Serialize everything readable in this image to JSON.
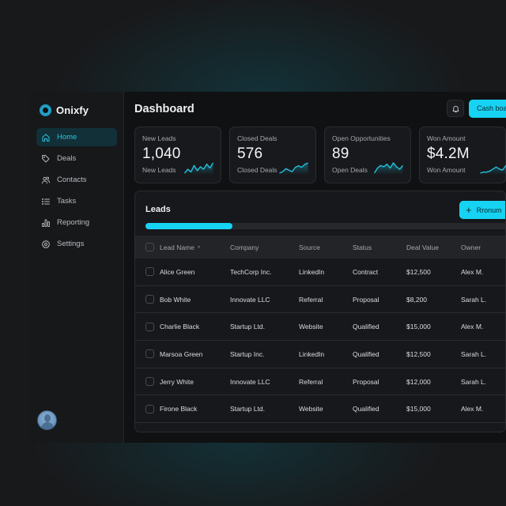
{
  "app": {
    "name": "Onixfy"
  },
  "sidebar": {
    "items": [
      {
        "label": "Home",
        "icon": "home-icon",
        "active": true
      },
      {
        "label": "Deals",
        "icon": "tag-icon",
        "active": false
      },
      {
        "label": "Contacts",
        "icon": "users-icon",
        "active": false
      },
      {
        "label": "Tasks",
        "icon": "list-icon",
        "active": false
      },
      {
        "label": "Reporting",
        "icon": "bar-chart-icon",
        "active": false
      },
      {
        "label": "Settings",
        "icon": "gear-icon",
        "active": false
      }
    ]
  },
  "header": {
    "title": "Dashboard",
    "primary_button": "Cash board"
  },
  "stats": [
    {
      "label": "New Leads",
      "value": "1,040",
      "sub": "New Leads",
      "trend": [
        6,
        9,
        7,
        12,
        8,
        11,
        9,
        13,
        10,
        14
      ]
    },
    {
      "label": "Closed Deals",
      "value": "576",
      "sub": "Closed Deals",
      "trend": [
        4,
        5,
        7,
        6,
        5,
        8,
        9,
        8,
        10,
        11
      ]
    },
    {
      "label": "Open Opportunities",
      "value": "89",
      "sub": "Open Deals",
      "trend": [
        5,
        9,
        11,
        10,
        12,
        9,
        13,
        10,
        8,
        11
      ]
    },
    {
      "label": "Won Amount",
      "value": "$4.2M",
      "sub": "Won Amount",
      "trend": [
        3,
        4,
        4,
        5,
        7,
        9,
        7,
        6,
        10,
        13
      ]
    }
  ],
  "leads": {
    "title": "Leads",
    "button": "Rronum",
    "progress_percent": 24,
    "columns": [
      "Lead Name",
      "Company",
      "Source",
      "Status",
      "Deal Value",
      "Owner"
    ],
    "rows": [
      [
        "Alice Green",
        "TechCorp Inc.",
        "LinkedIn",
        "Contract",
        "$12,500",
        "Alex M."
      ],
      [
        "Bob White",
        "Innovate LLC",
        "Referral",
        "Proposal",
        "$8,200",
        "Sarah L."
      ],
      [
        "Charlie Black",
        "Startup Ltd.",
        "Website",
        "Qualified",
        "$15,000",
        "Alex M."
      ],
      [
        "Marsoa Green",
        "Startup Inc.",
        "LinkedIn",
        "Qualified",
        "$12,500",
        "Sarah L."
      ],
      [
        "Jerry White",
        "Innovate LLC",
        "Referral",
        "Proposal",
        "$12,000",
        "Sarah L."
      ],
      [
        "Firone Black",
        "Startup Ltd.",
        "Website",
        "Qualified",
        "$15,000",
        "Alex M."
      ]
    ]
  },
  "colors": {
    "accent": "#17d3f3",
    "active_nav_bg": "#113038",
    "active_nav_text": "#2fc3df",
    "background": "#18191b",
    "panel": "#17181b"
  }
}
